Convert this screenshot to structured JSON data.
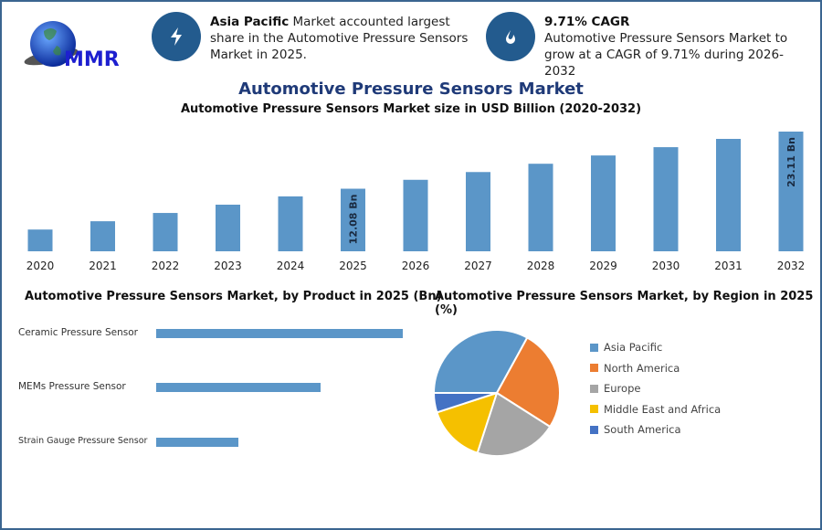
{
  "logo": {
    "text": "MMR"
  },
  "info_cards": [
    {
      "icon": "lightning-icon",
      "bold": "Asia Pacific",
      "text": " Market accounted largest share in the Automotive Pressure Sensors Market in 2025."
    },
    {
      "icon": "growth-drop-icon",
      "bold": "9.71% CAGR",
      "text": "Automotive Pressure Sensors Market to grow at a CAGR of 9.71% during 2026-2032"
    }
  ],
  "title": "Automotive Pressure Sensors Market",
  "colors": {
    "bar": "#5b96c8",
    "frame": "#3a6590",
    "icon_bg": "#235b8e",
    "title": "#1f3a78"
  },
  "chart_data": [
    {
      "type": "bar",
      "title": "Automotive Pressure Sensors Market size in USD Billion (2020-2032)",
      "categories": [
        "2020",
        "2021",
        "2022",
        "2023",
        "2024",
        "2025",
        "2026",
        "2027",
        "2028",
        "2029",
        "2030",
        "2031",
        "2032"
      ],
      "values": [
        4.2,
        5.8,
        7.4,
        9.0,
        10.6,
        12.08,
        13.8,
        15.3,
        16.9,
        18.5,
        20.1,
        21.7,
        23.11
      ],
      "data_labels": {
        "5": "12.08 Bn",
        "12": "23.11 Bn"
      },
      "ylim": [
        0,
        23.11
      ],
      "grid": false
    },
    {
      "type": "bar",
      "orientation": "horizontal",
      "title": "Automotive Pressure Sensors Market, by Product in 2025 (Bn)",
      "categories": [
        "Ceramic Pressure Sensor",
        "MEMs Pressure Sensor",
        "Strain Gauge Pressure Sensor"
      ],
      "values": [
        6.04,
        4.03,
        2.01
      ],
      "grid": false
    },
    {
      "type": "pie",
      "title": "Automotive Pressure Sensors Market, by Region in 2025 (%)",
      "labels": [
        "Asia Pacific",
        "North America",
        "Europe",
        "Middle East and Africa",
        "South America"
      ],
      "values": [
        33,
        26,
        21,
        15,
        5
      ],
      "colors": [
        "#5b96c8",
        "#ec7d31",
        "#a5a5a5",
        "#f5c000",
        "#4472c4"
      ],
      "legend": "right"
    }
  ]
}
